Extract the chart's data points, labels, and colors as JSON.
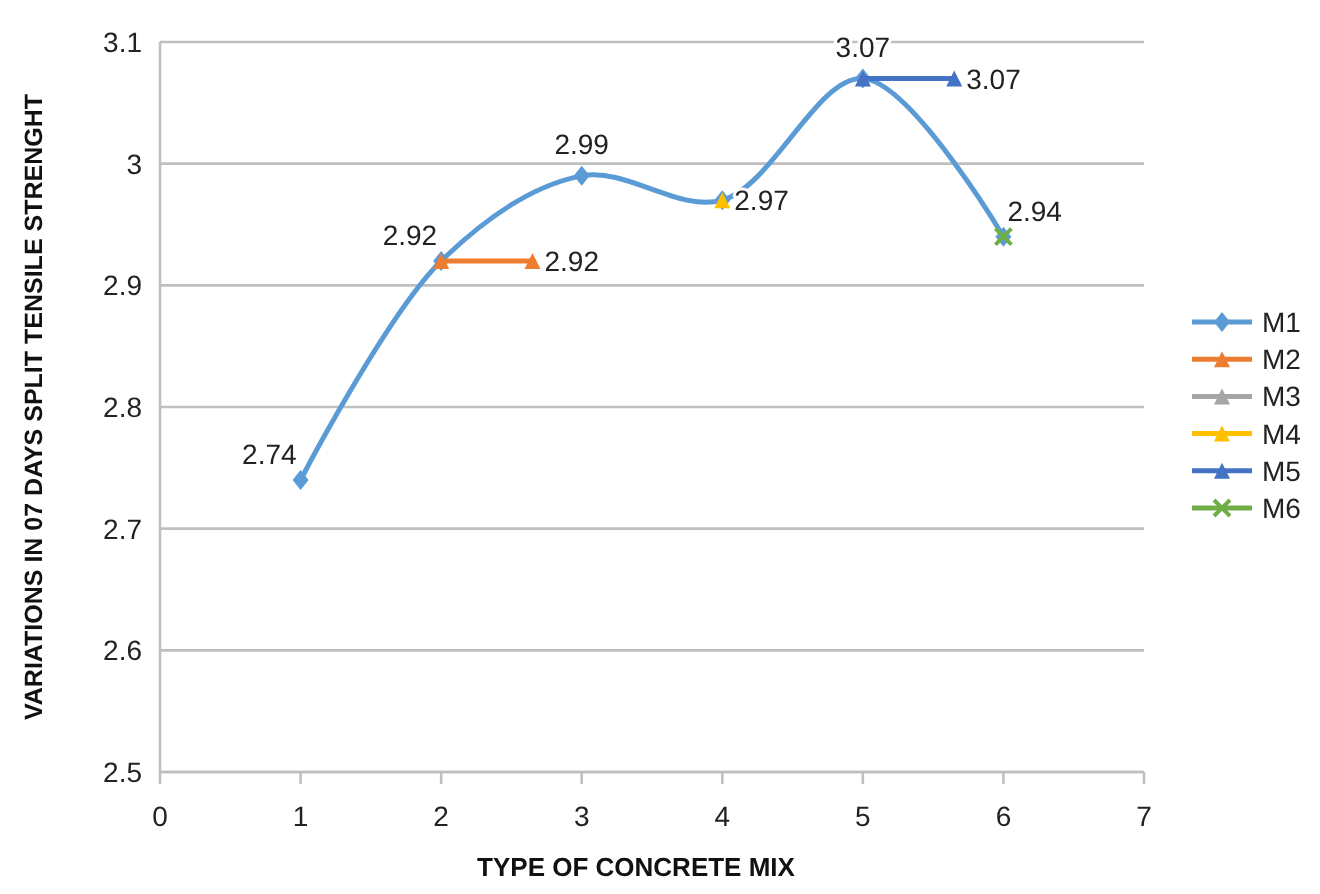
{
  "chart_data": {
    "type": "line",
    "xlabel": "TYPE OF CONCRETE MIX",
    "ylabel": "VARIATIONS IN 07 DAYS SPLIT TENSILE STRENGHT",
    "xlim": [
      0,
      7
    ],
    "xticks": [
      0,
      1,
      2,
      3,
      4,
      5,
      6,
      7
    ],
    "ylim": [
      2.5,
      3.1
    ],
    "yticks": [
      2.5,
      2.6,
      2.7,
      2.8,
      2.9,
      3,
      3.1
    ],
    "grid": "y",
    "legend": "right",
    "series": [
      {
        "name": "M1",
        "color": "#5b9bd5",
        "marker": "diamond",
        "x": [
          1,
          2,
          3,
          4,
          5,
          6
        ],
        "values": [
          2.74,
          2.92,
          2.99,
          2.97,
          3.07,
          2.94
        ],
        "value_labels": [
          "2.74",
          "2.92",
          "2.99",
          "2.97",
          "3.07",
          "2.94"
        ]
      },
      {
        "name": "M2",
        "color": "#ed7d31",
        "marker": "triangle",
        "x": [
          2,
          2.65
        ],
        "values": [
          2.92,
          2.92
        ],
        "value_labels": [
          null,
          "2.92"
        ]
      },
      {
        "name": "M3",
        "color": "#a5a5a5",
        "marker": "triangle"
      },
      {
        "name": "M4",
        "color": "#ffc000",
        "marker": "triangle",
        "x": [
          4
        ],
        "values": [
          2.97
        ]
      },
      {
        "name": "M5",
        "color": "#4472c4",
        "marker": "triangle",
        "x": [
          5,
          5.65
        ],
        "values": [
          3.07,
          3.07
        ],
        "value_labels": [
          null,
          "3.07"
        ]
      },
      {
        "name": "M6",
        "color": "#70ad47",
        "marker": "cross",
        "x": [
          6
        ],
        "values": [
          2.94
        ]
      }
    ]
  }
}
